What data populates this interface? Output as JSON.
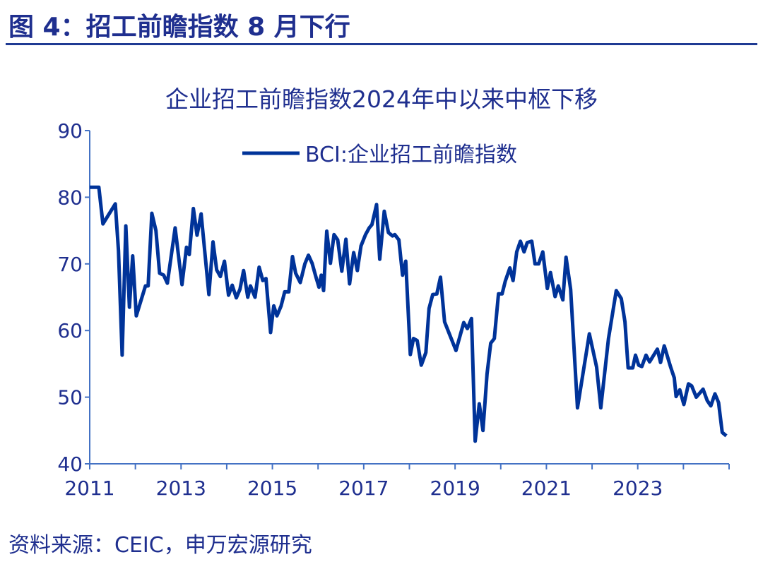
{
  "header": {
    "title": "图 4：招工前瞻指数 8 月下行"
  },
  "footer": {
    "source": "资料来源：CEIC，申万宏源研究"
  },
  "colors": {
    "line": "#003399",
    "axis": "#4472c4",
    "title": "#1f2f8f",
    "rule": "#1f3a93"
  },
  "chart_data": {
    "type": "line",
    "title": "企业招工前瞻指数2024年中以来中枢下移",
    "xlabel": "",
    "ylabel": "",
    "xlim": [
      2011,
      2025
    ],
    "ylim": [
      40,
      90
    ],
    "x_ticks": [
      "2011",
      "2013",
      "2015",
      "2017",
      "2019",
      "2021",
      "2023"
    ],
    "y_ticks": [
      "40",
      "50",
      "60",
      "70",
      "80",
      "90"
    ],
    "grid": false,
    "legend": "top-center",
    "series": [
      {
        "name": "BCI:企业招工前瞻指数",
        "x": [
          2011.0,
          2011.2,
          2011.29,
          2011.56,
          2011.63,
          2011.71,
          2011.79,
          2011.87,
          2011.94,
          2012.02,
          2012.22,
          2012.28,
          2012.36,
          2012.45,
          2012.53,
          2012.62,
          2012.7,
          2012.87,
          2013.02,
          2013.12,
          2013.18,
          2013.27,
          2013.35,
          2013.44,
          2013.61,
          2013.7,
          2013.78,
          2013.86,
          2013.95,
          2014.04,
          2014.12,
          2014.21,
          2014.29,
          2014.37,
          2014.46,
          2014.52,
          2014.62,
          2014.71,
          2014.79,
          2014.86,
          2014.96,
          2015.03,
          2015.1,
          2015.19,
          2015.27,
          2015.36,
          2015.44,
          2015.51,
          2015.61,
          2015.71,
          2015.79,
          2015.87,
          2015.95,
          2016.02,
          2016.07,
          2016.12,
          2016.19,
          2016.27,
          2016.35,
          2016.43,
          2016.52,
          2016.61,
          2016.69,
          2016.78,
          2016.86,
          2016.94,
          2017.04,
          2017.12,
          2017.18,
          2017.28,
          2017.35,
          2017.45,
          2017.54,
          2017.63,
          2017.68,
          2017.77,
          2017.85,
          2017.92,
          2018.02,
          2018.09,
          2018.17,
          2018.26,
          2018.36,
          2018.43,
          2018.51,
          2018.6,
          2018.68,
          2018.77,
          2019.02,
          2019.19,
          2019.27,
          2019.36,
          2019.44,
          2019.53,
          2019.61,
          2019.7,
          2019.78,
          2019.86,
          2019.95,
          2020.03,
          2020.1,
          2020.2,
          2020.27,
          2020.35,
          2020.43,
          2020.51,
          2020.58,
          2020.68,
          2020.75,
          2020.83,
          2020.92,
          2021.02,
          2021.09,
          2021.19,
          2021.26,
          2021.36,
          2021.43,
          2021.53,
          2021.68,
          2021.94,
          2022.1,
          2022.19,
          2022.36,
          2022.53,
          2022.64,
          2022.72,
          2022.79,
          2022.89,
          2022.95,
          2023.02,
          2023.09,
          2023.18,
          2023.26,
          2023.35,
          2023.43,
          2023.5,
          2023.58,
          2023.72,
          2023.8,
          2023.84,
          2023.92,
          2024.01,
          2024.11,
          2024.18,
          2024.28,
          2024.43,
          2024.52,
          2024.6,
          2024.69,
          2024.77,
          2024.85,
          2024.94
        ],
        "values": [
          81.5,
          81.5,
          76.0,
          79.0,
          72.0,
          56.3,
          75.7,
          63.5,
          71.2,
          62.2,
          66.7,
          66.7,
          77.6,
          75.0,
          68.6,
          68.3,
          67.1,
          75.4,
          66.9,
          72.5,
          71.4,
          78.3,
          74.3,
          77.5,
          65.4,
          73.3,
          69.1,
          68.1,
          70.4,
          65.3,
          66.8,
          64.9,
          66.2,
          69.0,
          65.0,
          66.7,
          65.0,
          69.5,
          67.5,
          67.8,
          59.7,
          63.7,
          62.2,
          63.7,
          65.8,
          65.8,
          71.1,
          68.6,
          67.2,
          70.0,
          71.3,
          70.1,
          68.1,
          66.5,
          68.3,
          66.0,
          74.9,
          70.1,
          74.4,
          73.6,
          68.9,
          73.7,
          67.0,
          71.7,
          69.0,
          72.7,
          74.4,
          75.4,
          75.9,
          78.9,
          70.7,
          77.9,
          74.7,
          74.2,
          74.4,
          73.6,
          68.3,
          70.4,
          56.4,
          58.8,
          58.5,
          54.8,
          56.7,
          63.3,
          65.4,
          65.5,
          68.0,
          61.3,
          57.0,
          61.2,
          60.3,
          61.8,
          43.4,
          49.0,
          45.0,
          53.5,
          58.1,
          58.8,
          65.5,
          65.5,
          67.4,
          69.4,
          67.5,
          71.8,
          73.4,
          71.8,
          73.2,
          73.4,
          70.0,
          70.0,
          71.8,
          66.3,
          68.7,
          65.1,
          66.7,
          64.6,
          71.0,
          66.2,
          48.4,
          59.5,
          54.5,
          48.4,
          58.8,
          66.0,
          64.8,
          61.3,
          54.4,
          54.4,
          56.3,
          54.8,
          54.6,
          56.3,
          55.3,
          56.3,
          57.2,
          55.2,
          57.7,
          54.5,
          52.9,
          50.1,
          51.1,
          48.9,
          52.0,
          51.7,
          50.0,
          51.2,
          49.5,
          48.7,
          50.5,
          49.2,
          44.7,
          44.2
        ]
      }
    ]
  }
}
